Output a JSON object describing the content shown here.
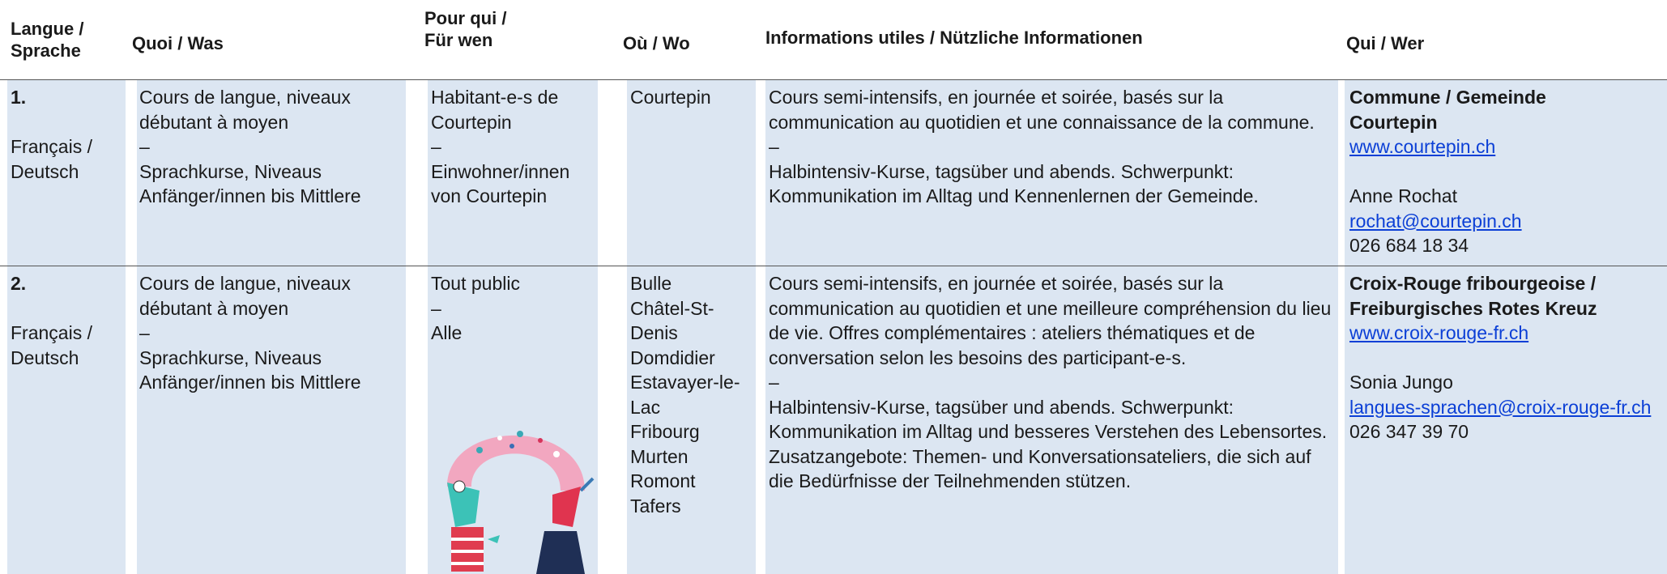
{
  "header": {
    "columns": [
      "Langue /\nSprache",
      "Quoi / Was",
      "Pour qui /\nFür wen",
      "Où / Wo",
      "Informations utiles / Nützliche Informationen",
      "Qui / Wer"
    ]
  },
  "rows": [
    {
      "number": "1.",
      "language": "Français / Deutsch",
      "what": [
        "Cours de langue, niveaux débutant à moyen",
        "–",
        "Sprachkurse, Niveaus Anfänger/innen bis Mittlere"
      ],
      "for_whom": [
        "Habitant-e-s de Courtepin",
        "–",
        "Einwohner/innen von Courtepin"
      ],
      "where": [
        "Courtepin"
      ],
      "info": [
        "Cours semi-intensifs, en journée et soirée, basés sur la communication au quotidien et une connaissance de la commune.",
        "–",
        "Halbintensiv-Kurse, tagsüber und abends. Schwerpunkt: Kommunikation im Alltag und Kennenlernen der Gemeinde."
      ],
      "contact": {
        "organization": "Commune / Gemeinde\nCourtepin",
        "website": "www.courtepin.ch",
        "person": "Anne Rochat",
        "email": "rochat@courtepin.ch",
        "phone": "026 684 18 34"
      }
    },
    {
      "number": "2.",
      "language": "Français / Deutsch",
      "what": [
        "Cours de langue, niveaux débutant à moyen",
        "–",
        "Sprachkurse, Niveaus Anfänger/innen bis Mittlere"
      ],
      "for_whom": [
        "Tout public",
        "–",
        "Alle"
      ],
      "where": [
        "Bulle",
        "Châtel-St-Denis",
        "Domdidier",
        "Estavayer-le-Lac",
        "Fribourg",
        "Murten",
        "Romont",
        "Tafers"
      ],
      "info": [
        "Cours semi-intensifs, en journée et soirée, basés sur la communication au quotidien et une meilleure compréhension du lieu de vie. Offres complémentaires : ateliers thématiques et de conversation selon les besoins des participant-e-s.",
        "–",
        "Halbintensiv-Kurse, tagsüber und abends. Schwerpunkt: Kommunikation im Alltag und besseres Verstehen des Lebensortes. Zusatzangebote: Themen- und Konversationsateliers, die sich auf die Bedürfnisse der Teilnehmenden stützen."
      ],
      "contact": {
        "organization": "Croix-Rouge fribourgeoise /\nFreiburgisches Rotes Kreuz",
        "website": "www.croix-rouge-fr.ch",
        "person": "Sonia Jungo",
        "email": "langues-sprachen@croix-rouge-fr.ch",
        "phone": "026 347 39 70"
      }
    }
  ]
}
